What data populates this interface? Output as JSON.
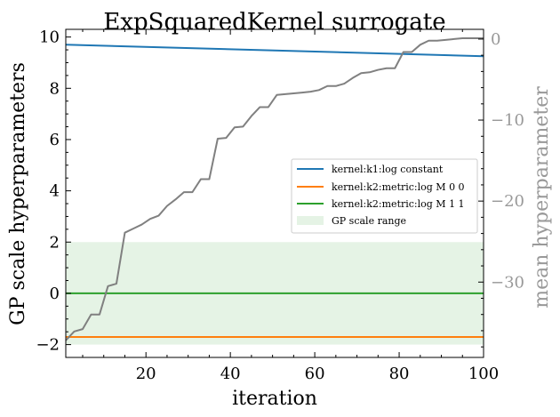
{
  "chart_data": {
    "type": "line",
    "title": "ExpSquaredKernel surrogate",
    "xlabel": "iteration",
    "ylabel": "GP scale hyperparameters",
    "ylabel_right": "mean hyperparameter",
    "xlim": [
      1,
      100
    ],
    "ylim": [
      -2.5,
      10.3
    ],
    "ylim_right": [
      -39.3,
      1.2
    ],
    "x_ticks": [
      20,
      40,
      60,
      80,
      100
    ],
    "y_ticks": [
      -2,
      0,
      2,
      4,
      6,
      8,
      10
    ],
    "y_ticks_right": [
      -30,
      -20,
      -10,
      0
    ],
    "grid": false,
    "legend_position": "center-right",
    "scale_band": {
      "label": "GP scale range",
      "y0": -2,
      "y1": 2,
      "color": "#2ca02c"
    },
    "series": [
      {
        "name": "kernel:k1:log constant",
        "axis": "left",
        "color": "#1f77b4",
        "x": [
          1,
          100
        ],
        "y": [
          9.7,
          9.25
        ]
      },
      {
        "name": "kernel:k2:metric:log M 0 0",
        "axis": "left",
        "color": "#ff7f0e",
        "x": [
          1,
          100
        ],
        "y": [
          -1.7,
          -1.7
        ]
      },
      {
        "name": "kernel:k2:metric:log M 1 1",
        "axis": "left",
        "color": "#2ca02c",
        "x": [
          1,
          100
        ],
        "y": [
          0,
          0
        ]
      },
      {
        "axis": "right",
        "color": "#808080",
        "x": [
          1,
          3,
          5,
          7,
          9,
          11,
          13,
          15,
          17,
          19,
          21,
          23,
          25,
          27,
          29,
          31,
          33,
          35,
          37,
          39,
          41,
          43,
          45,
          47,
          49,
          51,
          53,
          55,
          57,
          59,
          61,
          63,
          65,
          67,
          69,
          71,
          73,
          75,
          77,
          79,
          81,
          83,
          85,
          87,
          89,
          91,
          93,
          95,
          97,
          99,
          100
        ],
        "y": [
          -37.2,
          -36.1,
          -35.8,
          -34.0,
          -34.0,
          -30.5,
          -30.2,
          -23.9,
          -23.4,
          -22.9,
          -22.2,
          -21.8,
          -20.6,
          -19.8,
          -18.9,
          -18.9,
          -17.3,
          -17.3,
          -12.3,
          -12.2,
          -10.9,
          -10.8,
          -9.5,
          -8.4,
          -8.4,
          -6.9,
          -6.8,
          -6.7,
          -6.6,
          -6.5,
          -6.3,
          -5.8,
          -5.8,
          -5.5,
          -4.8,
          -4.2,
          -4.1,
          -3.8,
          -3.6,
          -3.6,
          -1.6,
          -1.6,
          -0.7,
          -0.2,
          -0.2,
          -0.1,
          0.0,
          0.1,
          0.1,
          0.1,
          0.1
        ]
      }
    ]
  }
}
